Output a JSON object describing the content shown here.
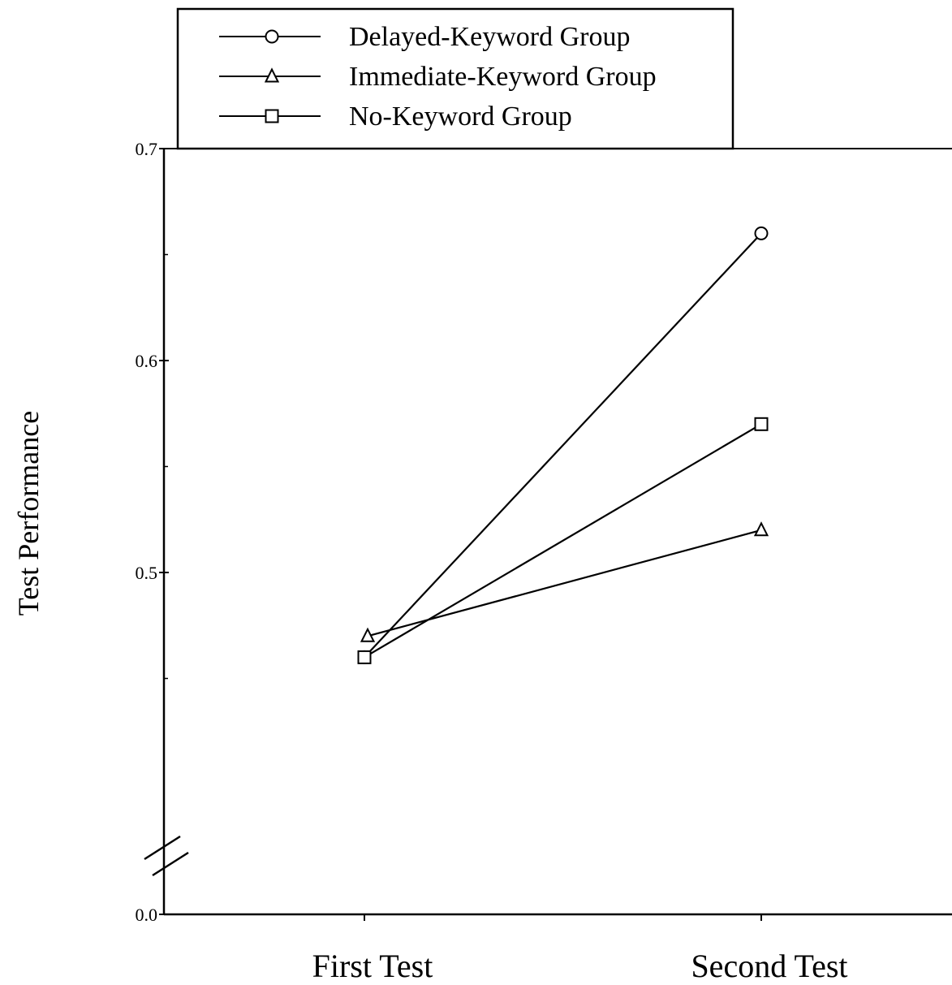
{
  "chart_data": {
    "type": "line",
    "title": "",
    "xlabel": "",
    "ylabel": "Test Performance",
    "categories": [
      "First Test",
      "Second Test"
    ],
    "y_ticks": [
      "0.0",
      "0.5",
      "0.6",
      "0.7"
    ],
    "y_axis_break": true,
    "ylim": [
      0.0,
      0.7
    ],
    "grid": false,
    "legend_position": "top-left",
    "series": [
      {
        "name": "Delayed-Keyword Group",
        "marker": "circle",
        "values": [
          0.46,
          0.66
        ]
      },
      {
        "name": "Immediate-Keyword Group",
        "marker": "triangle",
        "values": [
          0.47,
          0.52
        ]
      },
      {
        "name": "No-Keyword Group",
        "marker": "square",
        "values": [
          0.46,
          0.57
        ]
      }
    ]
  },
  "colors": {
    "ink": "#000000",
    "background": "#ffffff"
  }
}
